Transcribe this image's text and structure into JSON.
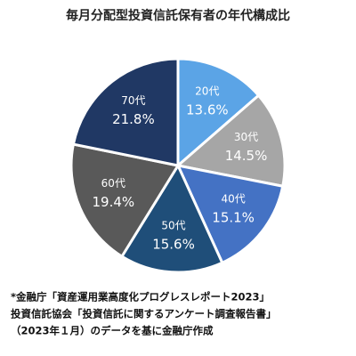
{
  "chart_data": {
    "type": "pie",
    "title": "毎月分配型投資信託保有者の年代構成比",
    "categories": [
      "20代",
      "30代",
      "40代",
      "50代",
      "60代",
      "70代"
    ],
    "values": [
      13.6,
      14.5,
      15.1,
      15.6,
      19.4,
      21.8
    ],
    "value_labels": [
      "13.6%",
      "14.5%",
      "15.1%",
      "15.6%",
      "19.4%",
      "21.8%"
    ],
    "colors": [
      "#5ba4e6",
      "#a6a6a6",
      "#4472c4",
      "#1f4e79",
      "#595959",
      "#203864"
    ],
    "footnote": [
      "*金融庁「資産運用業高度化プログレスレポート2023」",
      "投資信託協会「投資信託に関するアンケート調査報告書」",
      "（2023年１月）のデータを基に金融庁作成"
    ]
  }
}
